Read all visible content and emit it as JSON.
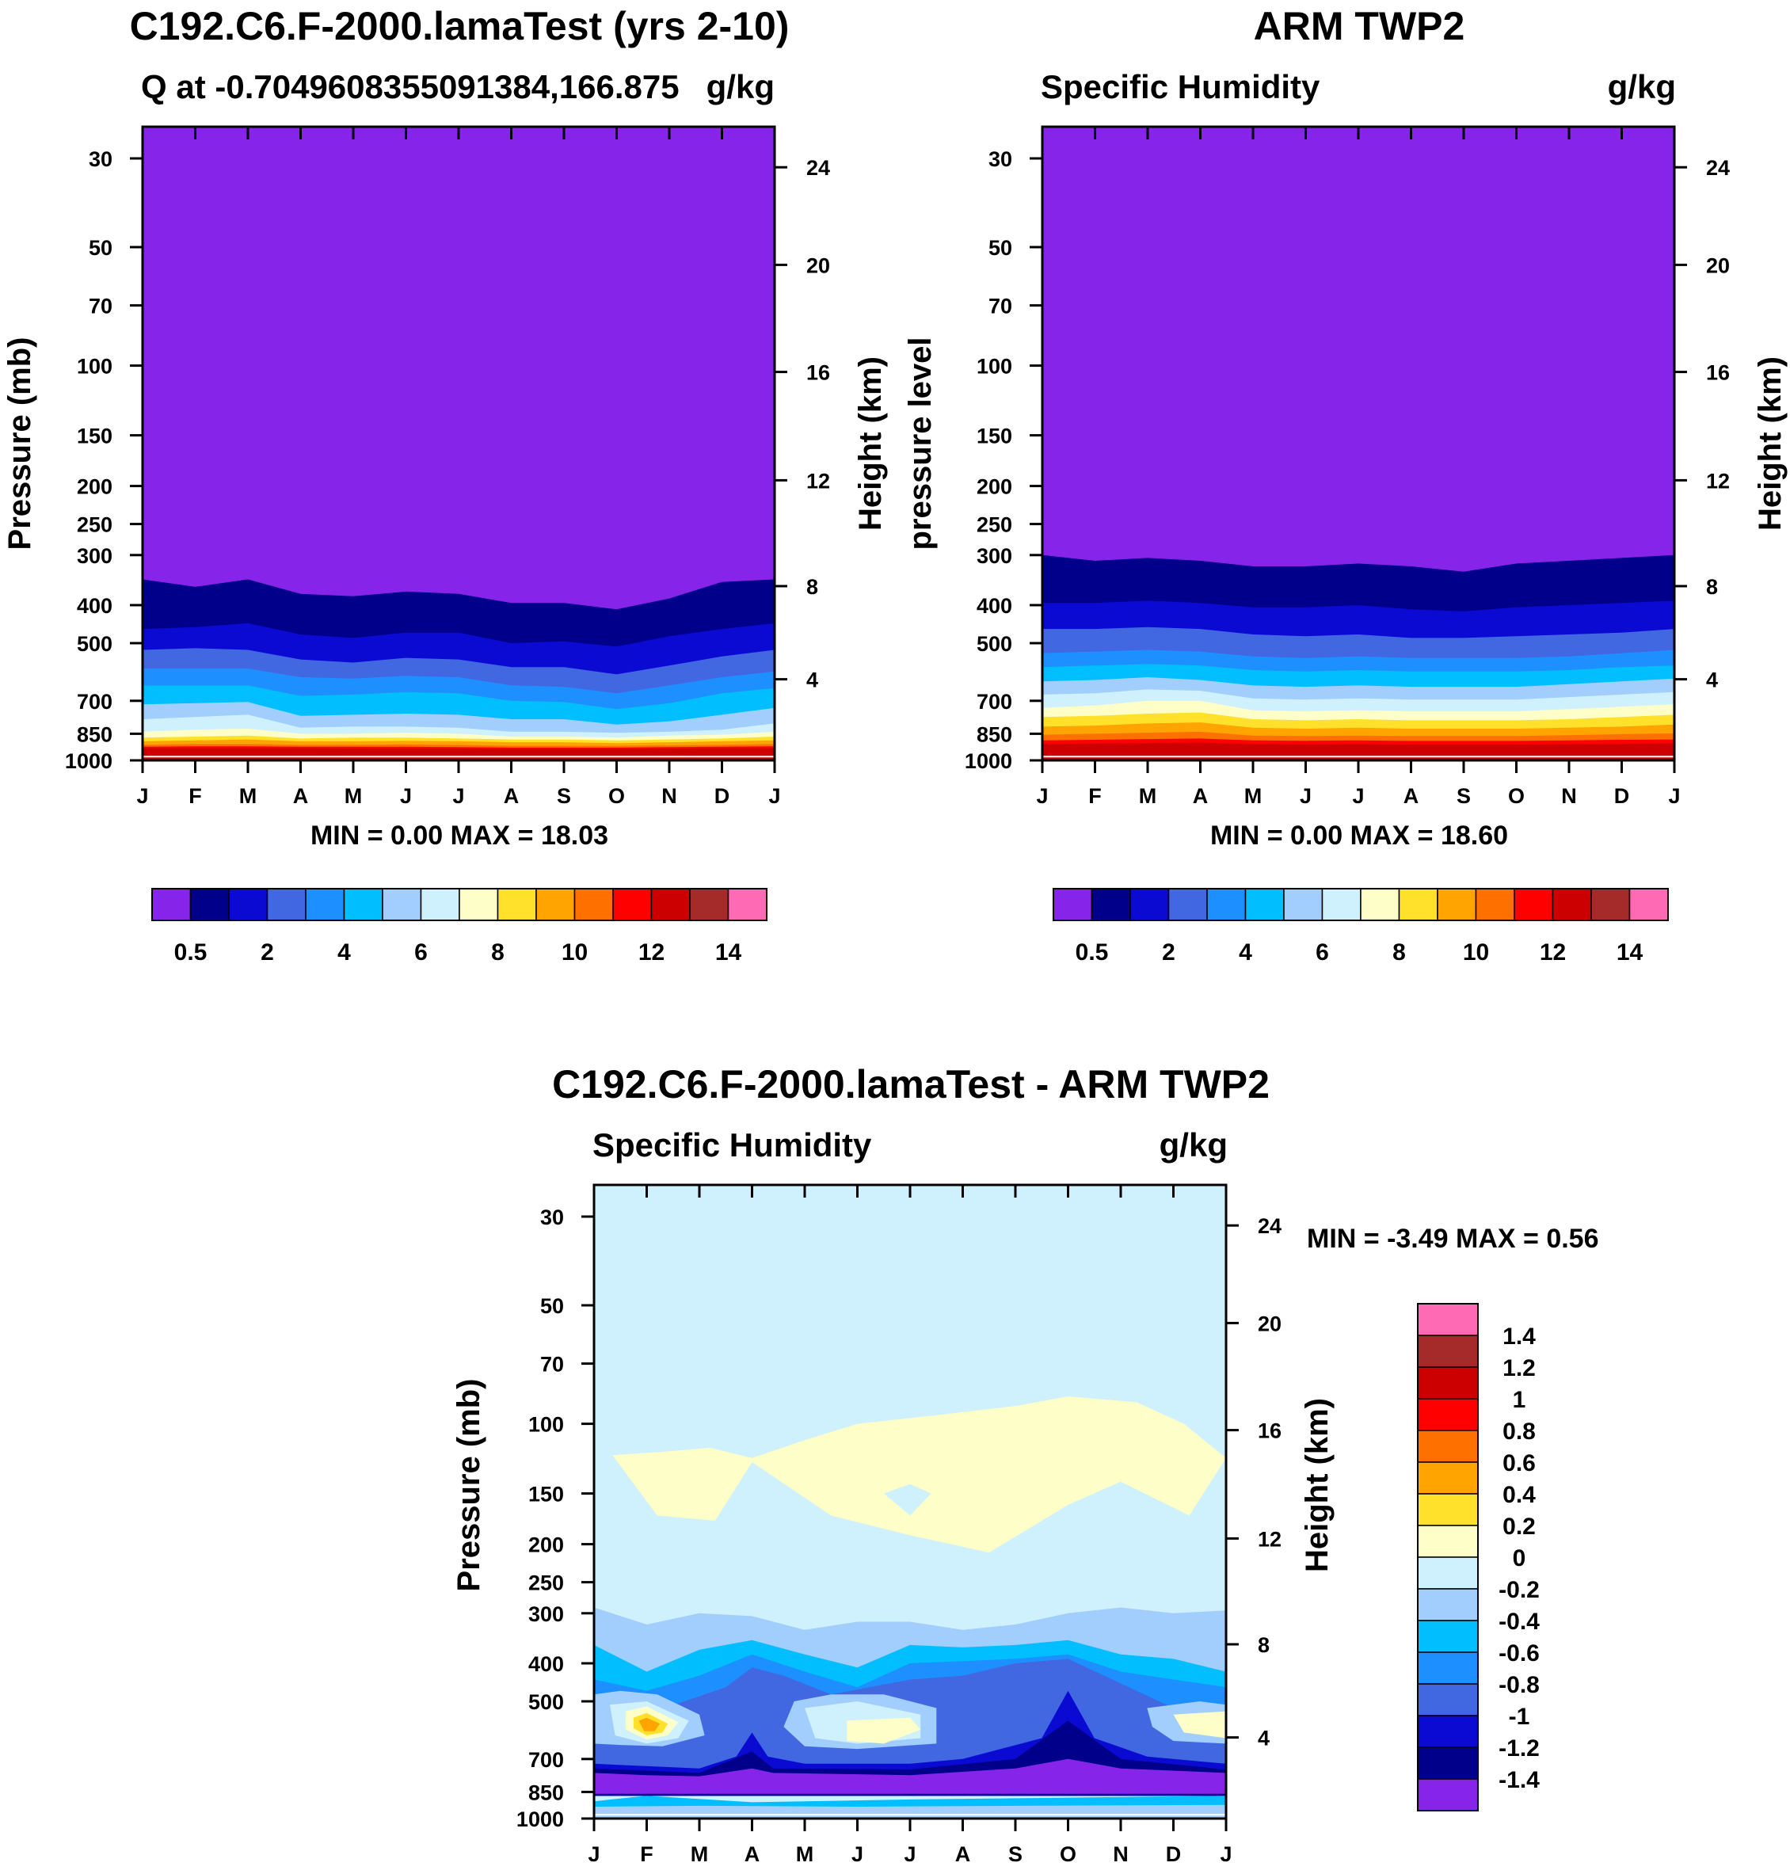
{
  "colors": {
    "seq": [
      "#8724ea",
      "#00008a",
      "#0a0ad3",
      "#4168e1",
      "#1e8fff",
      "#00beff",
      "#a1cefd",
      "#cff1fe",
      "#fefec8",
      "#ffe12c",
      "#ffa400",
      "#fe7000",
      "#fe0000",
      "#cc0000",
      "#a52a2a",
      "#ff6ab4"
    ],
    "diff": [
      "#8724ea",
      "#00008a",
      "#0a0ad3",
      "#4168e1",
      "#1e8fff",
      "#00beff",
      "#a1cefd",
      "#cff1fe",
      "#fefec8",
      "#ffe12c",
      "#ffa400",
      "#fe7000",
      "#fe0000",
      "#cc0000",
      "#a52a2a",
      "#ff6ab4"
    ]
  },
  "chart_data": [
    {
      "type": "contour",
      "title": "C192.C6.F-2000.lamaTest (yrs 2-10)",
      "subtitle_left": "Q at -0.7049608355091384,166.875",
      "subtitle_right": "g/kg",
      "ylabel": "Pressure (mb)",
      "ylabel_right": "Height (km)",
      "months": [
        "J",
        "F",
        "M",
        "A",
        "M",
        "J",
        "J",
        "A",
        "S",
        "O",
        "N",
        "D",
        "J"
      ],
      "pressure_ticks": [
        "30",
        "50",
        "70",
        "100",
        "150",
        "200",
        "250",
        "300",
        "400",
        "500",
        "700",
        "850",
        "1000"
      ],
      "height_ticks": [
        "24",
        "20",
        "16",
        "12",
        "8",
        "4"
      ],
      "min_max": "MIN =   0.00 MAX =  18.03",
      "levels": [
        0.5,
        1,
        2,
        3,
        4,
        5,
        6,
        7,
        8,
        9,
        10,
        11,
        12,
        13,
        14
      ],
      "colorbar_labels": [
        "0.5",
        "2",
        "4",
        "6",
        "8",
        "10",
        "12",
        "14"
      ],
      "band_pressures_mb": [
        [
          345,
          360,
          345,
          375,
          380,
          370,
          375,
          395,
          395,
          410,
          385,
          350,
          345
        ],
        [
          460,
          455,
          445,
          475,
          485,
          470,
          470,
          500,
          495,
          510,
          480,
          460,
          445
        ],
        [
          520,
          515,
          520,
          550,
          560,
          545,
          550,
          575,
          575,
          600,
          570,
          540,
          520
        ],
        [
          580,
          580,
          580,
          610,
          615,
          605,
          610,
          640,
          645,
          670,
          640,
          610,
          590
        ],
        [
          640,
          640,
          640,
          680,
          675,
          665,
          670,
          700,
          705,
          735,
          710,
          670,
          650
        ],
        [
          715,
          710,
          705,
          765,
          760,
          755,
          760,
          780,
          780,
          805,
          790,
          760,
          730
        ],
        [
          780,
          770,
          760,
          820,
          815,
          815,
          820,
          840,
          840,
          845,
          840,
          830,
          800
        ],
        [
          840,
          830,
          825,
          850,
          850,
          845,
          850,
          865,
          865,
          870,
          860,
          855,
          840
        ],
        [
          870,
          865,
          860,
          875,
          870,
          870,
          875,
          880,
          880,
          885,
          880,
          875,
          865
        ],
        [
          890,
          885,
          880,
          890,
          890,
          888,
          890,
          895,
          895,
          900,
          895,
          890,
          885
        ],
        [
          910,
          905,
          905,
          910,
          910,
          908,
          910,
          915,
          915,
          915,
          912,
          910,
          905
        ],
        [
          920,
          918,
          918,
          920,
          920,
          920,
          922,
          925,
          925,
          925,
          922,
          920,
          918
        ],
        [
          928,
          928,
          928,
          928,
          930,
          930,
          930,
          932,
          932,
          932,
          930,
          928,
          928
        ]
      ]
    },
    {
      "type": "contour",
      "title": "ARM TWP2",
      "subtitle_left": "Specific Humidity",
      "subtitle_right": "g/kg",
      "ylabel": "pressure level",
      "ylabel_right": "Height (km)",
      "months": [
        "J",
        "F",
        "M",
        "A",
        "M",
        "J",
        "J",
        "A",
        "S",
        "O",
        "N",
        "D",
        "J"
      ],
      "pressure_ticks": [
        "30",
        "50",
        "70",
        "100",
        "150",
        "200",
        "250",
        "300",
        "400",
        "500",
        "700",
        "850",
        "1000"
      ],
      "height_ticks": [
        "24",
        "20",
        "16",
        "12",
        "8",
        "4"
      ],
      "min_max": "MIN =   0.00 MAX =  18.60",
      "levels": [
        0.5,
        1,
        2,
        3,
        4,
        5,
        6,
        7,
        8,
        9,
        10,
        11,
        12,
        13,
        14
      ],
      "colorbar_labels": [
        "0.5",
        "2",
        "4",
        "6",
        "8",
        "10",
        "12",
        "14"
      ],
      "band_pressures_mb": [
        [
          300,
          310,
          305,
          310,
          320,
          320,
          315,
          320,
          330,
          315,
          310,
          305,
          300
        ],
        [
          395,
          395,
          390,
          395,
          405,
          405,
          400,
          410,
          415,
          405,
          400,
          395,
          390
        ],
        [
          460,
          460,
          455,
          460,
          475,
          480,
          475,
          485,
          485,
          480,
          475,
          470,
          460
        ],
        [
          530,
          525,
          520,
          525,
          540,
          545,
          540,
          545,
          545,
          545,
          540,
          530,
          520
        ],
        [
          575,
          570,
          565,
          570,
          585,
          590,
          585,
          590,
          590,
          590,
          585,
          575,
          570
        ],
        [
          625,
          620,
          610,
          620,
          640,
          645,
          640,
          645,
          645,
          645,
          635,
          625,
          615
        ],
        [
          675,
          670,
          655,
          660,
          690,
          695,
          690,
          695,
          695,
          695,
          685,
          675,
          665
        ],
        [
          730,
          720,
          700,
          700,
          740,
          745,
          740,
          745,
          745,
          745,
          735,
          725,
          715
        ],
        [
          770,
          765,
          755,
          750,
          780,
          785,
          780,
          785,
          785,
          785,
          780,
          770,
          760
        ],
        [
          815,
          810,
          800,
          795,
          820,
          825,
          820,
          825,
          825,
          825,
          820,
          815,
          805
        ],
        [
          855,
          850,
          845,
          840,
          860,
          862,
          860,
          862,
          862,
          862,
          858,
          852,
          848
        ],
        [
          885,
          882,
          878,
          875,
          885,
          887,
          885,
          888,
          888,
          888,
          885,
          882,
          880
        ],
        [
          905,
          903,
          900,
          898,
          905,
          907,
          905,
          908,
          908,
          908,
          906,
          904,
          902
        ]
      ]
    },
    {
      "type": "contour",
      "title": "C192.C6.F-2000.lamaTest - ARM TWP2",
      "subtitle_left": "Specific Humidity",
      "subtitle_right": "g/kg",
      "ylabel": "Pressure (mb)",
      "ylabel_right": "Height (km)",
      "months": [
        "J",
        "F",
        "M",
        "A",
        "M",
        "J",
        "J",
        "A",
        "S",
        "O",
        "N",
        "D",
        "J"
      ],
      "pressure_ticks": [
        "30",
        "50",
        "70",
        "100",
        "150",
        "200",
        "250",
        "300",
        "400",
        "500",
        "700",
        "850",
        "1000"
      ],
      "height_ticks": [
        "24",
        "20",
        "16",
        "12",
        "8",
        "4"
      ],
      "min_max": "MIN =  -3.49 MAX =   0.56",
      "levels": [
        -1.4,
        -1.2,
        -1,
        -0.8,
        -0.6,
        -0.4,
        -0.2,
        0,
        0.2,
        0.4,
        0.6,
        0.8,
        1,
        1.2,
        1.4
      ],
      "colorbar_labels": [
        "1.4",
        "1.2",
        "1",
        "0.8",
        "0.6",
        "0.4",
        "0.2",
        "0",
        "-0.2",
        "-0.4",
        "-0.6",
        "-0.8",
        "-1",
        "-1.2",
        "-1.4"
      ],
      "background_value": 0.0,
      "features": [
        {
          "value_range": [
            0,
            0.2
          ],
          "description": "upper positive band",
          "pressure_mb": [
            120,
            220
          ]
        },
        {
          "value_range": [
            -0.2,
            0
          ],
          "description": "upper troposphere",
          "pressure_mb": [
            290,
            380
          ]
        },
        {
          "value_range": [
            -0.6,
            -0.2
          ],
          "description": "mid troposphere",
          "pressure_mb": [
            380,
            520
          ]
        },
        {
          "value_range": [
            0.2,
            0.6
          ],
          "description": "local maxima near F",
          "pressure_mb": [
            520,
            640
          ]
        },
        {
          "value_range": [
            -1.4,
            -1.0
          ],
          "description": "near surface",
          "pressure_mb": [
            720,
            920
          ]
        }
      ]
    }
  ]
}
